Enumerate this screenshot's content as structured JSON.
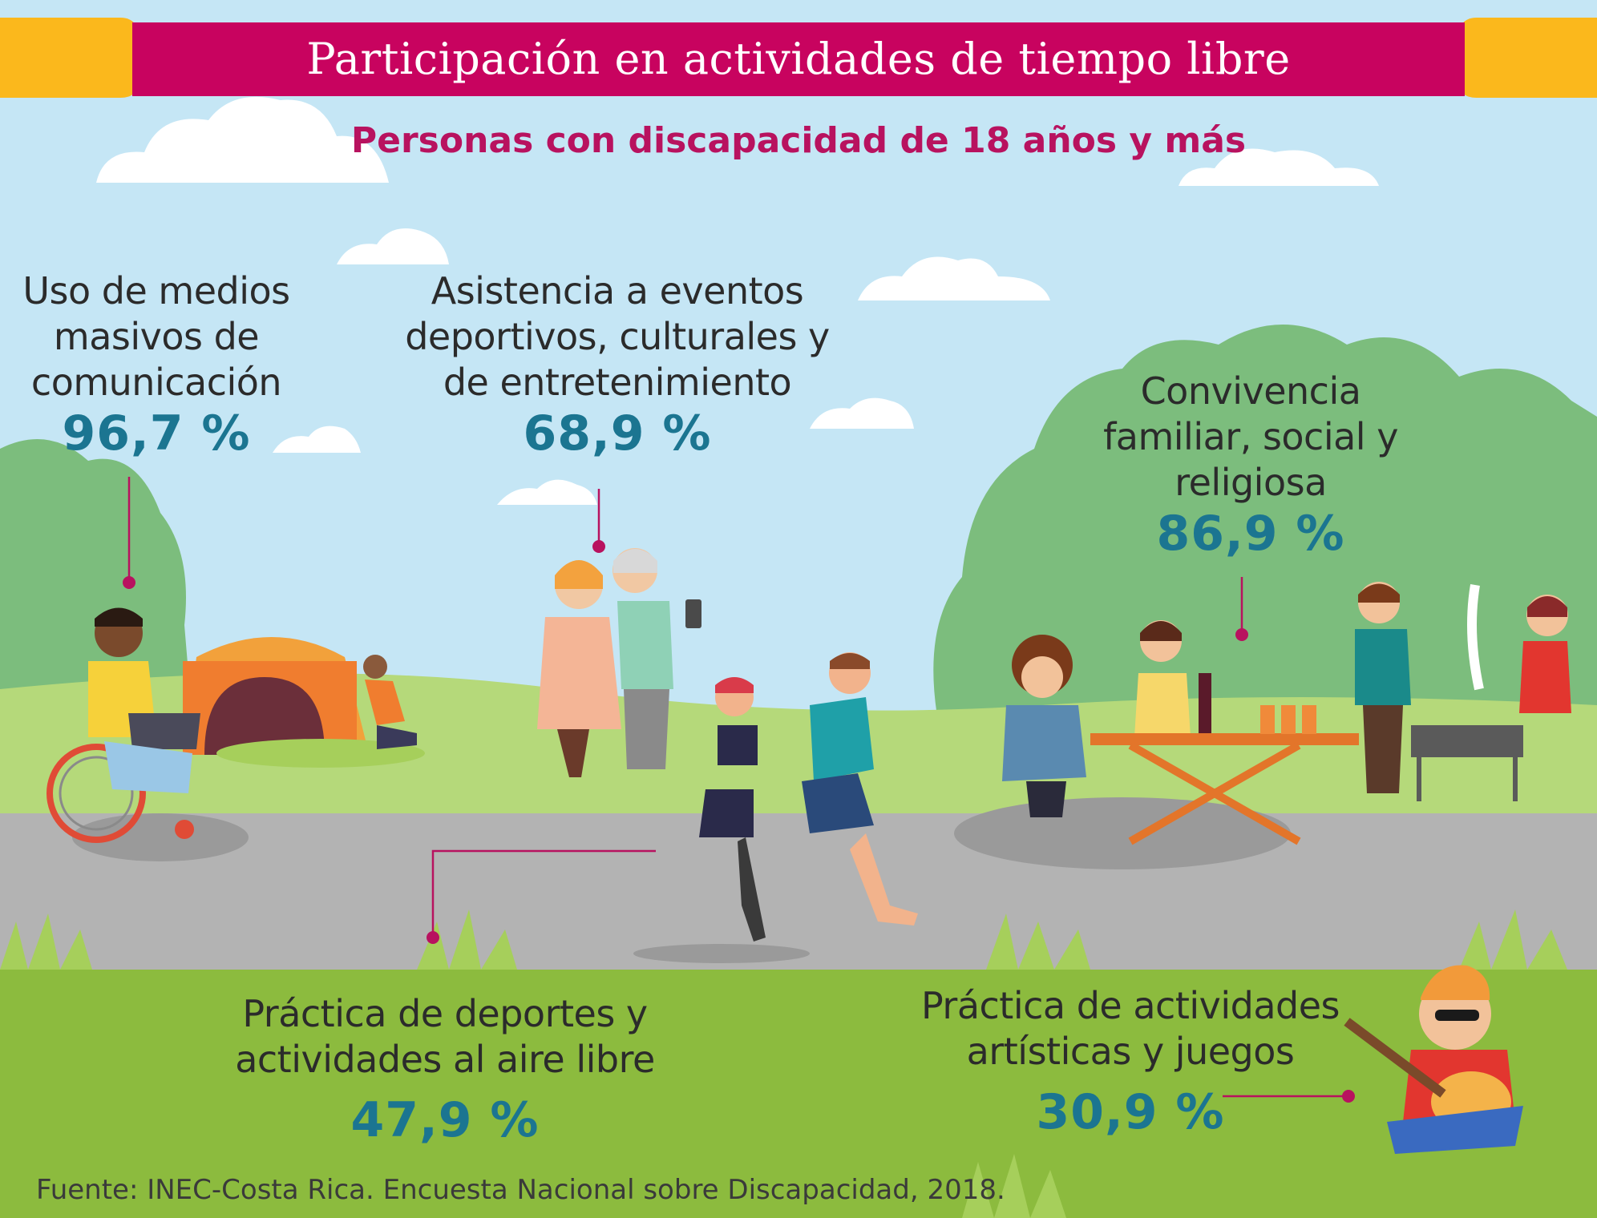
{
  "title": "Participación en actividades de tiempo libre",
  "subtitle": "Personas con discapacidad de 18 años y más",
  "activities": [
    {
      "label_lines": [
        "Uso de medios",
        "masivos de",
        "comunicación"
      ],
      "value": "96,7 %"
    },
    {
      "label_lines": [
        "Asistencia a eventos",
        "deportivos, culturales y",
        "de entretenimiento"
      ],
      "value": "68,9 %"
    },
    {
      "label_lines": [
        "Convivencia",
        "familiar, social y",
        "religiosa"
      ],
      "value": "86,9 %"
    },
    {
      "label_lines": [
        "Práctica de deportes y",
        "actividades al aire libre"
      ],
      "value": "47,9 %"
    },
    {
      "label_lines": [
        "Práctica de actividades",
        "artísticas y juegos"
      ],
      "value": "30,9 %"
    }
  ],
  "source": "Fuente: INEC-Costa Rica. Encuesta Nacional sobre Discapacidad, 2018.",
  "colors": {
    "banner": "#c8035f",
    "banner_ends": "#fbb81c",
    "sky": "#c5e6f5",
    "percent_text": "#1b7591",
    "leader_line": "#b8125f",
    "grass": "#8cbb3e",
    "road": "#b3b3b3",
    "trees": "#7cbd7d"
  },
  "icons": [
    "wheelchair-user-with-laptop-icon",
    "tent-icon",
    "elderly-couple-icon",
    "runners-icon",
    "family-picnic-icon",
    "barbecue-icon",
    "guitar-player-icon"
  ]
}
